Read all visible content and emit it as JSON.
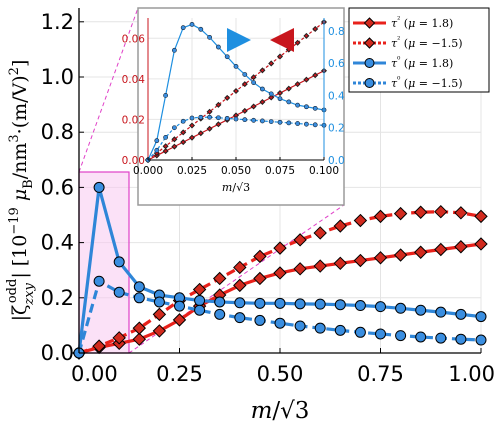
{
  "chart_data": [
    {
      "type": "line",
      "xlabel": "m/√3",
      "ylabel": "|ζ_zxy^odd| [10^-19 μ_B/nm^3·(m/V)^2]",
      "xlim": [
        0,
        1.0
      ],
      "ylim": [
        0,
        1.25
      ],
      "xticks": [
        "0.00",
        "0.25",
        "0.50",
        "0.75",
        "1.00"
      ],
      "yticks": [
        "0.0",
        "0.2",
        "0.4",
        "0.6",
        "0.8",
        "1.0",
        "1.2"
      ],
      "grid": true,
      "legend_position": "top-right",
      "x": [
        0.0,
        0.05,
        0.1,
        0.15,
        0.2,
        0.25,
        0.3,
        0.35,
        0.4,
        0.45,
        0.5,
        0.55,
        0.6,
        0.65,
        0.7,
        0.75,
        0.8,
        0.85,
        0.9,
        0.95,
        1.0
      ],
      "series": [
        {
          "name": "τ²(μ = 1.8)",
          "color": "#e8211b",
          "linestyle": "solid",
          "marker": "diamond",
          "values": [
            0.0,
            0.02,
            0.035,
            0.05,
            0.08,
            0.12,
            0.17,
            0.21,
            0.245,
            0.27,
            0.29,
            0.305,
            0.315,
            0.325,
            0.335,
            0.345,
            0.355,
            0.365,
            0.375,
            0.385,
            0.395
          ]
        },
        {
          "name": "τ²(μ = −1.5)",
          "color": "#e8211b",
          "linestyle": "dotted",
          "marker": "diamond",
          "values": [
            0.0,
            0.025,
            0.055,
            0.09,
            0.14,
            0.19,
            0.23,
            0.27,
            0.31,
            0.35,
            0.38,
            0.41,
            0.435,
            0.46,
            0.48,
            0.495,
            0.505,
            0.51,
            0.512,
            0.508,
            0.495
          ]
        },
        {
          "name": "τ⁰(μ = 1.8)",
          "color": "#2f86d8",
          "linestyle": "solid",
          "marker": "circle",
          "values": [
            0.0,
            0.6,
            0.33,
            0.24,
            0.21,
            0.2,
            0.19,
            0.185,
            0.182,
            0.18,
            0.18,
            0.178,
            0.177,
            0.175,
            0.172,
            0.168,
            0.162,
            0.155,
            0.148,
            0.14,
            0.132
          ]
        },
        {
          "name": "τ⁰(μ = −1.5)",
          "color": "#2f86d8",
          "linestyle": "dotted",
          "marker": "circle",
          "values": [
            0.0,
            0.26,
            0.22,
            0.2,
            0.185,
            0.17,
            0.155,
            0.14,
            0.128,
            0.118,
            0.108,
            0.098,
            0.09,
            0.082,
            0.075,
            0.069,
            0.063,
            0.058,
            0.054,
            0.05,
            0.047
          ]
        }
      ],
      "colors": {
        "red": "#e8211b",
        "blue": "#2f86d8",
        "zoom_region": "#f7c8f0",
        "zoom_border": "#e040c8"
      }
    },
    {
      "type": "line",
      "placement": "inset",
      "xlabel": "m/√3",
      "xlim": [
        0,
        0.1
      ],
      "xticks": [
        "0.000",
        "0.025",
        "0.050",
        "0.075",
        "0.100"
      ],
      "ylim_left": [
        0,
        0.07
      ],
      "yticks_left": [
        "0.00",
        "0.02",
        "0.04",
        "0.06"
      ],
      "ylim_right": [
        0,
        0.88
      ],
      "yticks_right": [
        "0.0",
        "0.2",
        "0.4",
        "0.6",
        "0.8"
      ],
      "x": [
        0.0,
        0.005,
        0.01,
        0.015,
        0.02,
        0.025,
        0.03,
        0.035,
        0.04,
        0.045,
        0.05,
        0.055,
        0.06,
        0.065,
        0.07,
        0.075,
        0.08,
        0.085,
        0.09,
        0.095,
        0.1
      ],
      "series": [
        {
          "name": "τ²(μ = 1.8)",
          "axis": "left",
          "color": "#c8161d",
          "marker": "diamond",
          "linestyle": "solid",
          "values": [
            0.0,
            0.0022,
            0.0044,
            0.0066,
            0.0088,
            0.011,
            0.0132,
            0.0154,
            0.0176,
            0.0198,
            0.022,
            0.0242,
            0.0264,
            0.0286,
            0.0308,
            0.033,
            0.0352,
            0.0374,
            0.0396,
            0.0418,
            0.044
          ]
        },
        {
          "name": "τ²(μ = −1.5)",
          "axis": "left",
          "color": "#c8161d",
          "marker": "diamond",
          "linestyle": "dotted",
          "values": [
            0.0,
            0.0034,
            0.0068,
            0.0102,
            0.0136,
            0.017,
            0.0204,
            0.0238,
            0.0272,
            0.0306,
            0.034,
            0.0374,
            0.0408,
            0.0442,
            0.0476,
            0.051,
            0.0544,
            0.0578,
            0.0612,
            0.0646,
            0.068
          ]
        },
        {
          "name": "τ⁰(μ = 1.8)",
          "axis": "right",
          "color": "#1e8fe0",
          "marker": "circle",
          "linestyle": "solid",
          "values": [
            0.0,
            0.12,
            0.4,
            0.68,
            0.82,
            0.84,
            0.81,
            0.76,
            0.7,
            0.64,
            0.58,
            0.53,
            0.48,
            0.44,
            0.41,
            0.38,
            0.36,
            0.34,
            0.33,
            0.32,
            0.31
          ]
        },
        {
          "name": "τ⁰(μ = −1.5)",
          "axis": "right",
          "color": "#1e8fe0",
          "marker": "circle",
          "linestyle": "dotted",
          "values": [
            0.0,
            0.06,
            0.14,
            0.2,
            0.24,
            0.26,
            0.265,
            0.265,
            0.262,
            0.258,
            0.254,
            0.25,
            0.246,
            0.242,
            0.238,
            0.234,
            0.23,
            0.226,
            0.222,
            0.218,
            0.215
          ]
        }
      ],
      "annotations": [
        "blue arrow pointing right",
        "red arrow pointing left"
      ]
    }
  ]
}
